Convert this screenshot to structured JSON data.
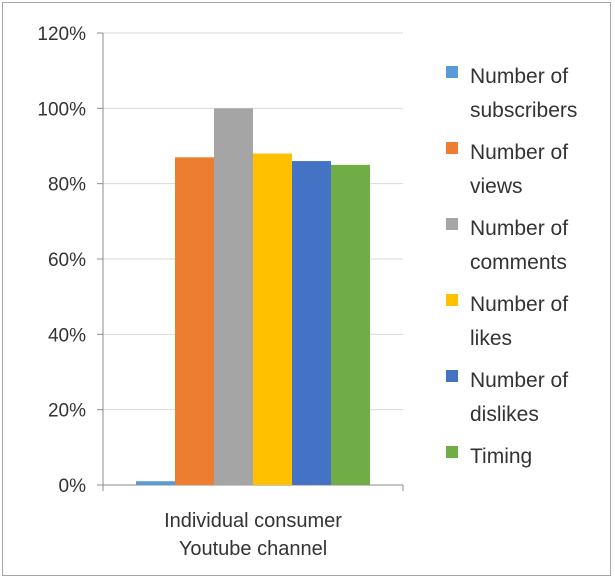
{
  "chart_data": {
    "type": "bar",
    "categories": [
      "Individual consumer Youtube channel"
    ],
    "category_label_lines": [
      "Individual consumer",
      "Youtube channel"
    ],
    "series": [
      {
        "name": "Number of subscribers",
        "legend_lines": [
          "Number of",
          "subscribers"
        ],
        "values": [
          0.01
        ],
        "color": "#5b9bd5"
      },
      {
        "name": "Number of views",
        "legend_lines": [
          "Number of",
          "views"
        ],
        "values": [
          0.87
        ],
        "color": "#ed7d31"
      },
      {
        "name": "Number of comments",
        "legend_lines": [
          "Number of",
          "comments"
        ],
        "values": [
          1.0
        ],
        "color": "#a5a5a5"
      },
      {
        "name": "Number of likes",
        "legend_lines": [
          "Number of",
          "likes"
        ],
        "values": [
          0.88
        ],
        "color": "#ffc000"
      },
      {
        "name": "Number of dislikes",
        "legend_lines": [
          "Number of",
          "dislikes"
        ],
        "values": [
          0.86
        ],
        "color": "#4472c4"
      },
      {
        "name": "Timing",
        "legend_lines": [
          "Timing"
        ],
        "values": [
          0.85
        ],
        "color": "#70ad47"
      }
    ],
    "yticks": [
      "0%",
      "20%",
      "40%",
      "60%",
      "80%",
      "100%",
      "120%"
    ],
    "ylim": [
      0,
      1.2
    ],
    "title": "",
    "xlabel": "",
    "ylabel": "",
    "grid": true,
    "legend_position": "right"
  }
}
